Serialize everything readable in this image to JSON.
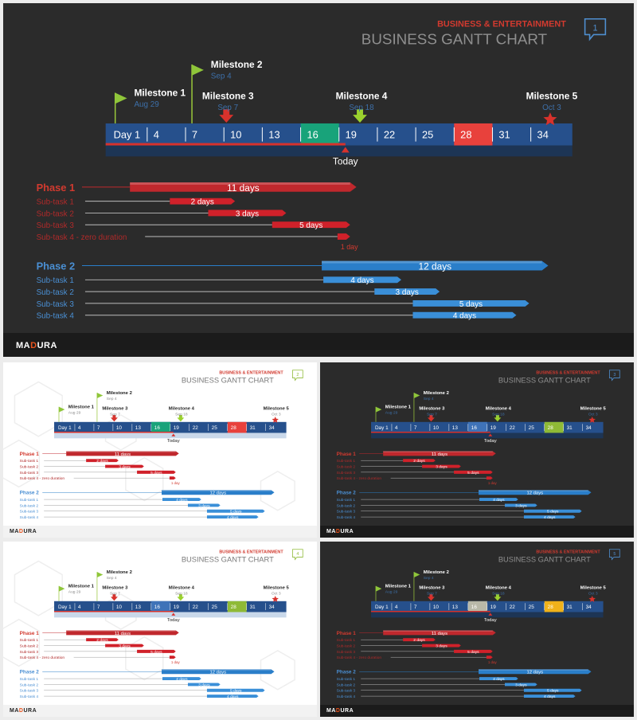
{
  "header": {
    "category": "BUSINESS & ENTERTAINMENT",
    "title": "BUSINESS GANTT CHART",
    "logo_prefix": "MA",
    "logo_o": "D",
    "logo_suffix": "URA"
  },
  "slides": [
    {
      "id": "main",
      "theme": "dark",
      "badge": "1",
      "accent1": "#18a37a",
      "accent2": "#e8413c"
    },
    {
      "id": "s2",
      "theme": "light",
      "badge": "2",
      "accent1": "#18a37a",
      "accent2": "#e8413c"
    },
    {
      "id": "s3",
      "theme": "dark",
      "badge": "3",
      "accent1": "#3f73b8",
      "accent2": "#8fba36"
    },
    {
      "id": "s4",
      "theme": "light",
      "badge": "4",
      "accent1": "#3f73b8",
      "accent2": "#8fba36"
    },
    {
      "id": "s5",
      "theme": "dark",
      "badge": "5",
      "accent1": "#b8b8a8",
      "accent2": "#f0b21a"
    }
  ],
  "timeline": {
    "ticks": [
      "Day 1",
      "4",
      "7",
      "10",
      "13",
      "16",
      "19",
      "22",
      "25",
      "28",
      "31",
      "34"
    ],
    "accent_tick_1": "16",
    "accent_tick_2": "28",
    "today_label": "Today",
    "today_day": 19
  },
  "milestones": [
    {
      "name": "Milestone 1",
      "date": "Aug 29",
      "icon": "flag-icon",
      "day": 1
    },
    {
      "name": "Milestone 2",
      "date": "Sep 4",
      "icon": "flag-icon",
      "day": 7
    },
    {
      "name": "Milestone 3",
      "date": "Sep 7",
      "icon": "arrow-down-icon",
      "day": 10
    },
    {
      "name": "Milestone 4",
      "date": "Sep 18",
      "icon": "arrow-down-icon",
      "day": 21
    },
    {
      "name": "Milestone 5",
      "date": "Oct 3",
      "icon": "star-icon",
      "day": 36
    }
  ],
  "phases": [
    {
      "name": "Phase 1",
      "start": 4,
      "end": 19,
      "label": "11 days",
      "color": "#c0282d",
      "subtasks": [
        {
          "name": "Sub-task 1",
          "start": 7,
          "end": 10,
          "label": "2 days"
        },
        {
          "name": "Sub-task 2",
          "start": 10,
          "end": 14,
          "label": "3 days"
        },
        {
          "name": "Sub-task 3",
          "start": 15,
          "end": 19,
          "label": "5 days"
        },
        {
          "name": "Sub-task 4 - zero duration",
          "start": 19,
          "end": 19,
          "label": "1 day"
        }
      ]
    },
    {
      "name": "Phase 2",
      "start": 19,
      "end": 34,
      "label": "12 days",
      "color": "#2a7ec9",
      "subtasks": [
        {
          "name": "Sub-task 1",
          "start": 19,
          "end": 23,
          "label": "4 days"
        },
        {
          "name": "Sub-task 2",
          "start": 23,
          "end": 26,
          "label": "3 days"
        },
        {
          "name": "Sub-task 3",
          "start": 26,
          "end": 33,
          "label": "5 days"
        },
        {
          "name": "Sub-task 4",
          "start": 26,
          "end": 32,
          "label": "4 days"
        }
      ]
    }
  ]
}
